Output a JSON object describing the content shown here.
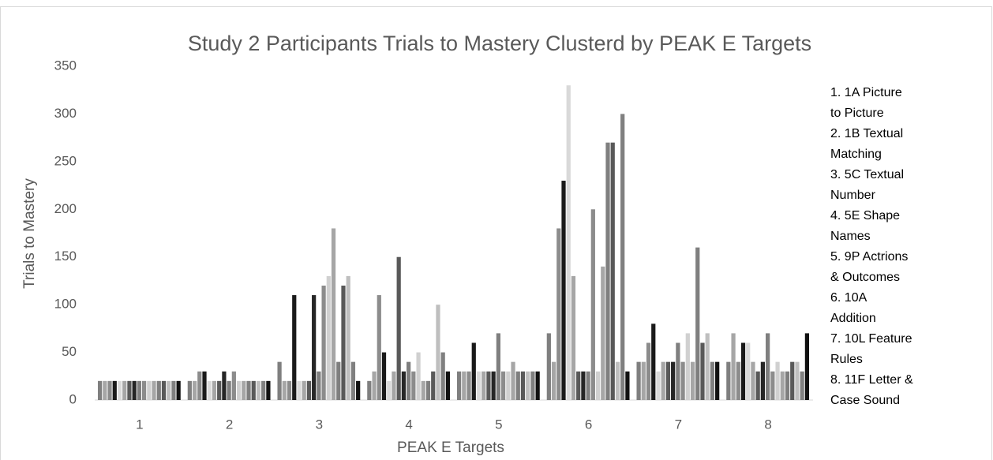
{
  "chart_data": {
    "type": "bar",
    "title": "Study 2 Participants Trials to Mastery Clusterd by PEAK E Targets",
    "x_label": "PEAK E Targets",
    "y_label": "Trials to Mastery",
    "categories": [
      "1",
      "2",
      "3",
      "4",
      "5",
      "6",
      "7",
      "8"
    ],
    "ylim": [
      0,
      350
    ],
    "yticks": [
      0,
      50,
      100,
      150,
      200,
      250,
      300,
      350
    ],
    "grid": false,
    "annotations": [
      "1. 1A Picture",
      "to Picture",
      "2. 1B Textual",
      "Matching",
      "3. 5C Textual",
      "Number",
      "4. 5E Shape",
      "Names",
      "5. 9P Actrions",
      "& Outcomes",
      "6. 10A",
      "Addition",
      "7. 10L Feature",
      "Rules",
      "8. 11F Letter &",
      "Case Sound"
    ],
    "series": [
      {
        "color": "#7f7f7f",
        "values": [
          20,
          20,
          40,
          20,
          30,
          70,
          40,
          40
        ]
      },
      {
        "color": "#a6a6a6",
        "values": [
          20,
          20,
          20,
          30,
          30,
          40,
          40,
          70
        ]
      },
      {
        "color": "#8c8c8c",
        "values": [
          20,
          30,
          20,
          110,
          30,
          180,
          60,
          40
        ]
      },
      {
        "color": "#1a1a1a",
        "values": [
          20,
          30,
          110,
          50,
          60,
          230,
          80,
          60
        ]
      },
      {
        "color": "#d9d9d9",
        "values": [
          20,
          20,
          20,
          20,
          30,
          330,
          30,
          60
        ]
      },
      {
        "color": "#a6a6a6",
        "values": [
          20,
          20,
          20,
          30,
          30,
          130,
          40,
          40
        ]
      },
      {
        "color": "#595959",
        "values": [
          20,
          20,
          20,
          150,
          30,
          30,
          40,
          30
        ]
      },
      {
        "color": "#262626",
        "values": [
          20,
          30,
          110,
          30,
          30,
          30,
          40,
          40
        ]
      },
      {
        "color": "#7f7f7f",
        "values": [
          20,
          20,
          30,
          40,
          70,
          30,
          60,
          70
        ]
      },
      {
        "color": "#8c8c8c",
        "values": [
          20,
          30,
          120,
          30,
          30,
          200,
          40,
          30
        ]
      },
      {
        "color": "#d0d0d0",
        "values": [
          20,
          20,
          130,
          50,
          30,
          30,
          70,
          40
        ]
      },
      {
        "color": "#a6a6a6",
        "values": [
          20,
          20,
          180,
          20,
          40,
          140,
          40,
          30
        ]
      },
      {
        "color": "#7f7f7f",
        "values": [
          20,
          20,
          40,
          20,
          30,
          270,
          160,
          30
        ]
      },
      {
        "color": "#595959",
        "values": [
          20,
          20,
          120,
          30,
          30,
          270,
          60,
          40
        ]
      },
      {
        "color": "#bfbfbf",
        "values": [
          20,
          20,
          130,
          100,
          30,
          40,
          70,
          40
        ]
      },
      {
        "color": "#808080",
        "values": [
          20,
          20,
          40,
          50,
          30,
          300,
          40,
          30
        ]
      },
      {
        "color": "#111111",
        "values": [
          20,
          20,
          20,
          30,
          30,
          30,
          40,
          70
        ]
      }
    ]
  }
}
